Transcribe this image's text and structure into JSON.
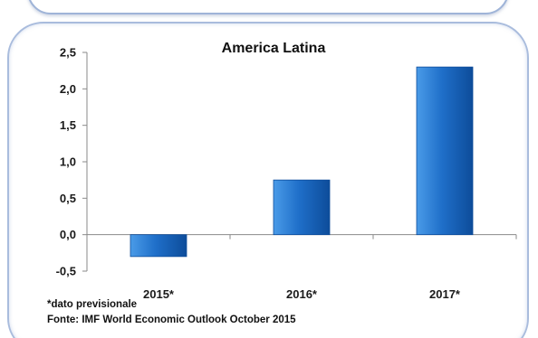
{
  "chart_data": {
    "type": "bar",
    "title": "America Latina",
    "categories": [
      "2015*",
      "2016*",
      "2017*"
    ],
    "values": [
      -0.3,
      0.75,
      2.3
    ],
    "xlabel": "",
    "ylabel": "",
    "ylim": [
      -0.5,
      2.5
    ],
    "yticks": [
      "2,5",
      "2,0",
      "1,5",
      "1,0",
      "0,5",
      "0,0",
      "-0,5"
    ],
    "ytick_values": [
      2.5,
      2.0,
      1.5,
      1.0,
      0.5,
      0.0,
      -0.5
    ],
    "grid": false,
    "legend": "none",
    "bar_color": "#1f6fc9",
    "bar_color_light": "#4a9be8",
    "bar_color_dark": "#0d4c9a"
  },
  "footnotes": {
    "estimate_note": "*dato previsionale",
    "source": "Fonte: IMF World Economic Outlook October 2015"
  }
}
